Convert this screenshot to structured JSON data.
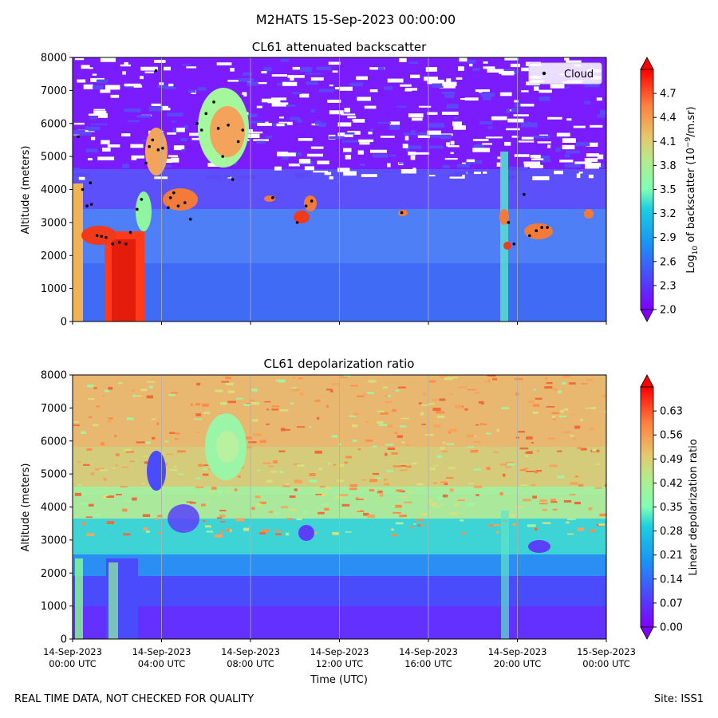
{
  "figure": {
    "suptitle": "M2HATS 15-Sep-2023 00:00:00",
    "footer_left": "REAL TIME DATA, NOT CHECKED FOR QUALITY",
    "footer_right": "Site: ISS1"
  },
  "chart_data": [
    {
      "type": "heatmap",
      "title": "CL61 attenuated backscatter",
      "xlabel": "",
      "ylabel": "Altitude (meters)",
      "x_tick_labels": [
        "",
        "",
        "",
        "",
        "",
        "",
        ""
      ],
      "x_range_hours": [
        0,
        24
      ],
      "ylim": [
        0,
        8000
      ],
      "y_ticks": [
        0,
        1000,
        2000,
        3000,
        4000,
        5000,
        6000,
        7000,
        8000
      ],
      "colorbar": {
        "label_prefix": "Log",
        "label_sub": "10",
        "label_mid": " of backscatter (10",
        "label_sup": "−9",
        "label_suffix": "/m.sr)",
        "range": [
          2.0,
          5.0
        ],
        "ticks": [
          "2.0",
          "2.3",
          "2.6",
          "2.9",
          "3.2",
          "3.5",
          "3.8",
          "4.1",
          "4.4",
          "4.7"
        ],
        "colormap": "rainbow"
      },
      "legend": {
        "label": "Cloud",
        "position": "top-right"
      },
      "cloud_points": [
        {
          "t": 0.25,
          "alt": 5600
        },
        {
          "t": 0.45,
          "alt": 4000
        },
        {
          "t": 0.65,
          "alt": 3500
        },
        {
          "t": 0.8,
          "alt": 4200
        },
        {
          "t": 0.85,
          "alt": 3550
        },
        {
          "t": 1.1,
          "alt": 2600
        },
        {
          "t": 1.3,
          "alt": 2580
        },
        {
          "t": 1.5,
          "alt": 2550
        },
        {
          "t": 1.8,
          "alt": 2350
        },
        {
          "t": 2.1,
          "alt": 2400
        },
        {
          "t": 2.4,
          "alt": 2350
        },
        {
          "t": 2.6,
          "alt": 2700
        },
        {
          "t": 2.9,
          "alt": 3400
        },
        {
          "t": 3.1,
          "alt": 3700
        },
        {
          "t": 3.3,
          "alt": 4800
        },
        {
          "t": 3.45,
          "alt": 5300
        },
        {
          "t": 3.6,
          "alt": 5500
        },
        {
          "t": 3.75,
          "alt": 7600
        },
        {
          "t": 3.85,
          "alt": 5200
        },
        {
          "t": 4.05,
          "alt": 5250
        },
        {
          "t": 4.3,
          "alt": 3450
        },
        {
          "t": 4.4,
          "alt": 3750
        },
        {
          "t": 4.55,
          "alt": 3900
        },
        {
          "t": 4.75,
          "alt": 3500
        },
        {
          "t": 5.05,
          "alt": 3600
        },
        {
          "t": 5.3,
          "alt": 3100
        },
        {
          "t": 5.6,
          "alt": 6000
        },
        {
          "t": 5.8,
          "alt": 5800
        },
        {
          "t": 6.0,
          "alt": 6300
        },
        {
          "t": 6.35,
          "alt": 6650
        },
        {
          "t": 6.55,
          "alt": 5850
        },
        {
          "t": 6.75,
          "alt": 5000
        },
        {
          "t": 7.0,
          "alt": 5950
        },
        {
          "t": 7.2,
          "alt": 4300
        },
        {
          "t": 7.45,
          "alt": 5450
        },
        {
          "t": 7.65,
          "alt": 5800
        },
        {
          "t": 9.0,
          "alt": 3750
        },
        {
          "t": 10.1,
          "alt": 3000
        },
        {
          "t": 10.5,
          "alt": 3500
        },
        {
          "t": 10.75,
          "alt": 3650
        },
        {
          "t": 14.8,
          "alt": 3300
        },
        {
          "t": 19.6,
          "alt": 3000
        },
        {
          "t": 19.85,
          "alt": 2350
        },
        {
          "t": 20.3,
          "alt": 3850
        },
        {
          "t": 20.55,
          "alt": 2600
        },
        {
          "t": 20.85,
          "alt": 2750
        },
        {
          "t": 21.1,
          "alt": 2850
        },
        {
          "t": 21.35,
          "alt": 2850
        }
      ]
    },
    {
      "type": "heatmap",
      "title": "CL61 depolarization ratio",
      "xlabel": "Time (UTC)",
      "ylabel": "Altitude (meters)",
      "x_tick_labels": [
        [
          "14-Sep-2023",
          "00:00 UTC"
        ],
        [
          "14-Sep-2023",
          "04:00 UTC"
        ],
        [
          "14-Sep-2023",
          "08:00 UTC"
        ],
        [
          "14-Sep-2023",
          "12:00 UTC"
        ],
        [
          "14-Sep-2023",
          "16:00 UTC"
        ],
        [
          "14-Sep-2023",
          "20:00 UTC"
        ],
        [
          "15-Sep-2023",
          "00:00 UTC"
        ]
      ],
      "x_range_hours": [
        0,
        24
      ],
      "ylim": [
        0,
        8000
      ],
      "y_ticks": [
        0,
        1000,
        2000,
        3000,
        4000,
        5000,
        6000,
        7000,
        8000
      ],
      "colorbar": {
        "label": "Linear depolarization ratio",
        "range": [
          0.0,
          0.7
        ],
        "ticks": [
          "0.00",
          "0.07",
          "0.14",
          "0.21",
          "0.28",
          "0.35",
          "0.42",
          "0.49",
          "0.56",
          "0.63"
        ],
        "colormap": "rainbow"
      }
    }
  ]
}
